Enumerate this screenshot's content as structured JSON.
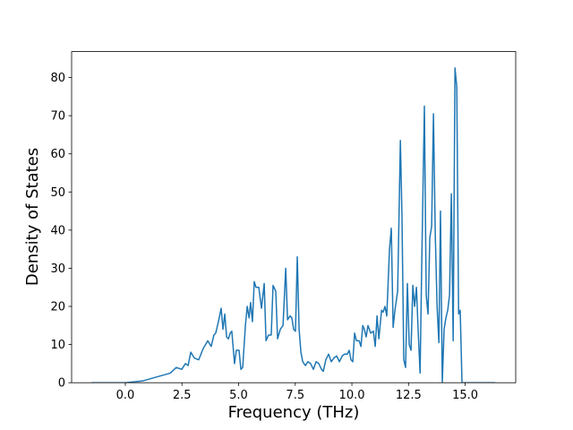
{
  "chart_data": {
    "type": "line",
    "x_label": "Frequency (THz)",
    "y_label": "Density of States",
    "color": "#1f77b4",
    "x": [
      -1.5,
      0,
      0.79,
      1.38,
      1.98,
      2.25,
      2.49,
      2.65,
      2.77,
      2.89,
      3.04,
      3.24,
      3.44,
      3.64,
      3.79,
      3.91,
      3.99,
      4.11,
      4.23,
      4.31,
      4.39,
      4.47,
      4.55,
      4.63,
      4.7,
      4.82,
      4.9,
      5.02,
      5.1,
      5.18,
      5.3,
      5.38,
      5.46,
      5.53,
      5.61,
      5.69,
      5.77,
      5.89,
      6.01,
      6.13,
      6.21,
      6.32,
      6.44,
      6.52,
      6.64,
      6.72,
      6.84,
      6.96,
      7.08,
      7.16,
      7.27,
      7.35,
      7.43,
      7.51,
      7.59,
      7.67,
      7.75,
      7.83,
      7.95,
      8.06,
      8.18,
      8.3,
      8.42,
      8.54,
      8.66,
      8.74,
      8.85,
      8.97,
      9.09,
      9.21,
      9.33,
      9.45,
      9.57,
      9.68,
      9.8,
      9.88,
      9.96,
      10.04,
      10.12,
      10.2,
      10.32,
      10.4,
      10.48,
      10.55,
      10.63,
      10.71,
      10.83,
      10.95,
      11.03,
      11.11,
      11.19,
      11.31,
      11.38,
      11.46,
      11.54,
      11.66,
      11.74,
      11.82,
      11.9,
      12.02,
      12.14,
      12.21,
      12.29,
      12.37,
      12.45,
      12.53,
      12.61,
      12.69,
      12.77,
      12.85,
      12.93,
      13.01,
      13.08,
      13.2,
      13.28,
      13.36,
      13.44,
      13.52,
      13.6,
      13.68,
      13.76,
      13.84,
      13.91,
      13.99,
      14.07,
      14.15,
      14.23,
      14.31,
      14.39,
      14.47,
      14.55,
      14.63,
      14.71,
      14.78,
      14.86,
      16.33
    ],
    "values": [
      0,
      0,
      0.5,
      1.5,
      2.5,
      4,
      3.5,
      5,
      4.5,
      8,
      6.5,
      6,
      9,
      11,
      9.5,
      12.5,
      13,
      16,
      19.5,
      14,
      18,
      12,
      11.5,
      13,
      13.5,
      5,
      8.5,
      8.5,
      3.5,
      4,
      15,
      20,
      17,
      21,
      16,
      26.5,
      25,
      25,
      19.5,
      26,
      11,
      12.5,
      12.5,
      25.5,
      24,
      11.5,
      14,
      15,
      30,
      16.5,
      17.5,
      17,
      14,
      13.5,
      33,
      14,
      8,
      5.5,
      4.5,
      5.5,
      5,
      3.5,
      5.5,
      5,
      3.5,
      3,
      6,
      7.5,
      5.5,
      6.5,
      7,
      5.5,
      7,
      7.5,
      7.5,
      8.5,
      6,
      5.5,
      13,
      11,
      11,
      9.5,
      15,
      14,
      12,
      15,
      13,
      13.5,
      9.5,
      17.5,
      11.5,
      19,
      18.5,
      20,
      17.5,
      35,
      40.5,
      14.5,
      19,
      24,
      63.5,
      44,
      6,
      4,
      26,
      10,
      8.5,
      25.5,
      20,
      25,
      13,
      2.5,
      30,
      72.5,
      23,
      18,
      38,
      41,
      70.5,
      39,
      20,
      10.5,
      45,
      0,
      14,
      17,
      19,
      23,
      49.5,
      11,
      82.5,
      77.5,
      18,
      19,
      0,
      0
    ],
    "xlim": [
      -2.37,
      17.23
    ],
    "ylim": [
      0,
      86.8
    ],
    "xticks": [
      {
        "value": 0,
        "label": "0.0"
      },
      2.5,
      {
        "value": 5,
        "label": "5.0"
      },
      7.5,
      {
        "value": 10,
        "label": "10.0"
      },
      12.5,
      {
        "value": 15,
        "label": "15.0"
      }
    ],
    "yticks": [
      0,
      10,
      20,
      30,
      40,
      50,
      60,
      70,
      80
    ]
  }
}
